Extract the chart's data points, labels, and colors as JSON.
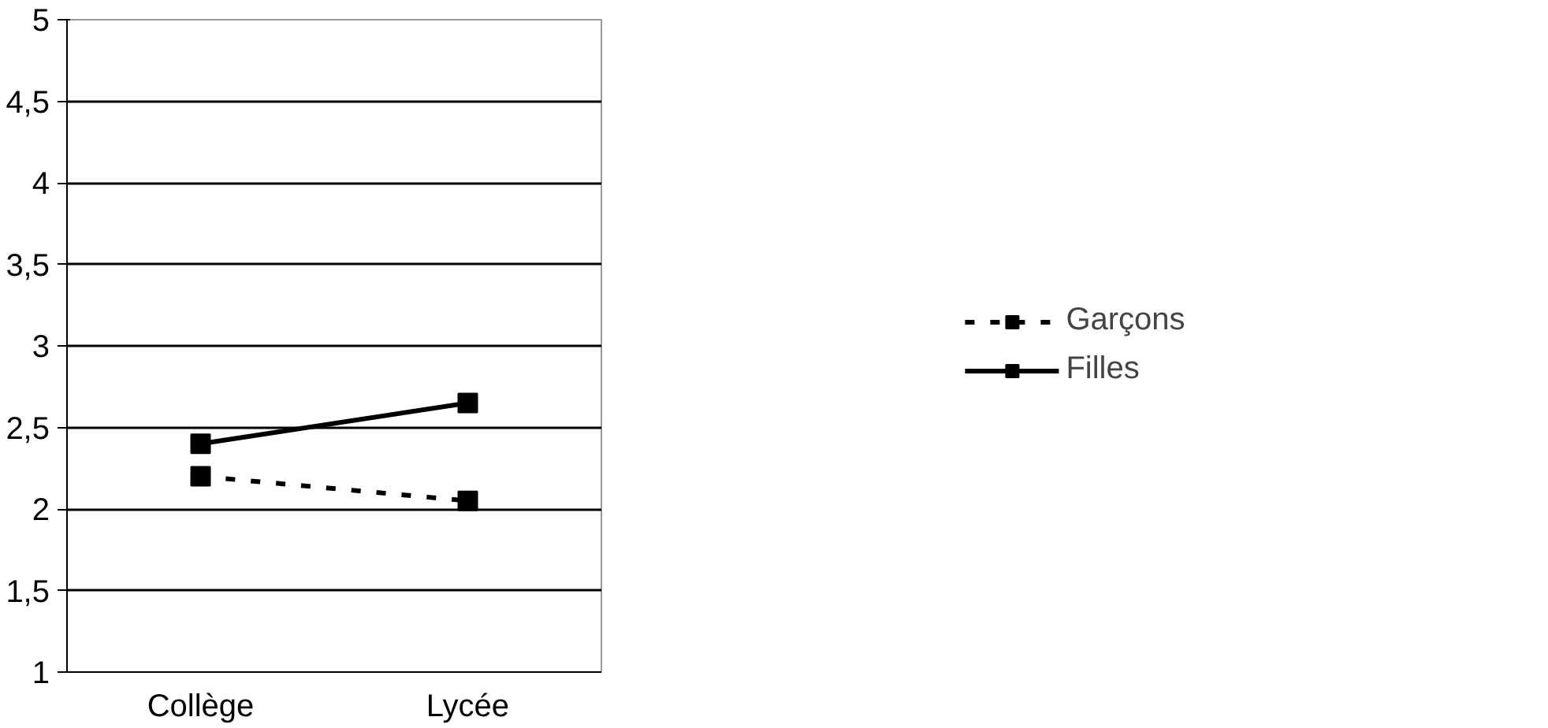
{
  "chart_data": {
    "type": "line",
    "categories": [
      "Collège",
      "Lycée"
    ],
    "series": [
      {
        "name": "Garçons",
        "color": "#000000",
        "values": [
          2.2,
          2.05
        ],
        "line_style": "dashed"
      },
      {
        "name": "Filles",
        "color": "#000000",
        "values": [
          2.4,
          2.65
        ],
        "line_style": "solid"
      }
    ],
    "ylim": [
      1,
      5
    ],
    "yticks": [
      1,
      {
        "value": 1.5,
        "label": "1,5"
      },
      2,
      {
        "value": 2.5,
        "label": "2,5"
      },
      3,
      {
        "value": 3.5,
        "label": "3,5"
      },
      4,
      {
        "value": 4.5,
        "label": "4,5"
      },
      5
    ],
    "grid": "y",
    "legend": "right",
    "marker": "square"
  }
}
